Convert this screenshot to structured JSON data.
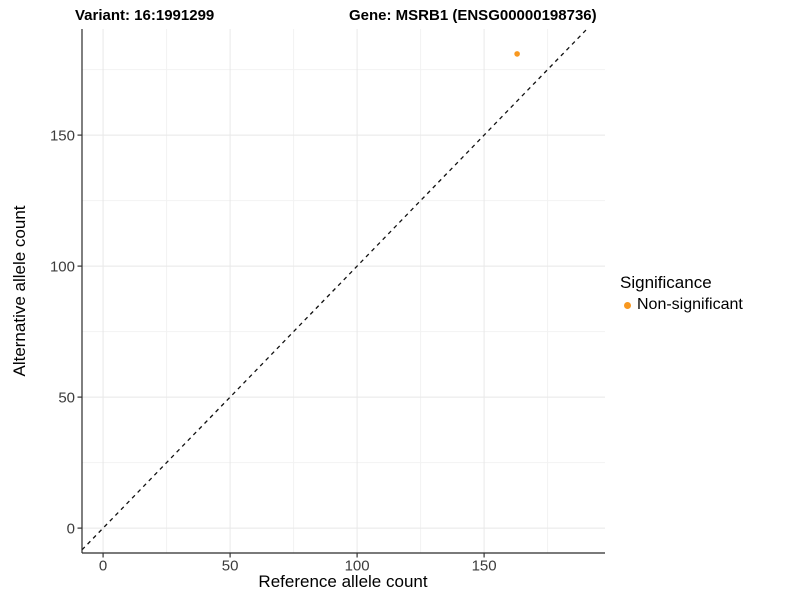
{
  "page": {
    "background": "#ffffff"
  },
  "chart_data": {
    "type": "scatter",
    "title_left": "Variant: 16:1991299",
    "title_right": "Gene: MSRB1 (ENSG00000198736)",
    "xlabel": "Reference allele count",
    "ylabel": "Alternative allele count",
    "xlim": [
      -8.3,
      197.6
    ],
    "ylim": [
      -9.5,
      190.5
    ],
    "x_ticks": [
      0,
      50,
      100,
      150
    ],
    "y_ticks": [
      0,
      50,
      100,
      150
    ],
    "x_minor_ticks": [
      25,
      75,
      125,
      175
    ],
    "y_minor_ticks": [
      25,
      75,
      125,
      175
    ],
    "grid": {
      "shown": true,
      "major_color": "#e8e8e8",
      "minor_color": "#f2f2f2"
    },
    "axis_color": "#2b2b2b",
    "tick_color": "#333333",
    "tick_label_color": "#3c3c3c",
    "points": [
      {
        "x": 163,
        "y": 181,
        "series": "Non-significant",
        "color": "#F89820",
        "radius": 2.8
      }
    ],
    "identity_line": {
      "type": "identity",
      "style": "dashed",
      "color": "#111111"
    },
    "legend": {
      "position": "right",
      "title": "Significance",
      "entries": [
        {
          "label": "Non-significant",
          "color": "#F89820",
          "marker": "circle"
        }
      ]
    }
  }
}
